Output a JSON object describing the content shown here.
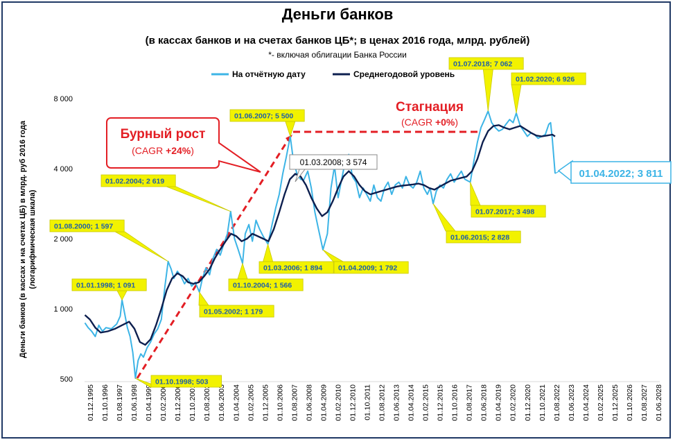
{
  "chart_data": {
    "type": "line",
    "title": "Деньги банков",
    "subtitle": "(в кассах банков и на счетах банков ЦБ*; в ценах 2016 года, млрд. рублей)",
    "note": "*- включая облигации Банка России",
    "ylabel_line1": "Деньги банков (в кассах и на счетах ЦБ) в млрд. руб 2016 года",
    "ylabel_line2": "(логарифмическая шкала)",
    "yscale": "log",
    "ylim": [
      500,
      8000
    ],
    "y_ticks": [
      500,
      1000,
      2000,
      4000,
      8000
    ],
    "y_tick_labels": [
      "500",
      "1 000",
      "2 000",
      "4 000",
      "8 000"
    ],
    "x_tick_labels": [
      "01.12.1995",
      "01.10.1996",
      "01.08.1997",
      "01.06.1998",
      "01.04.1999",
      "01.02.2000",
      "01.12.2000",
      "01.10.2001",
      "01.08.2002",
      "01.06.2003",
      "01.04.2004",
      "01.02.2005",
      "01.12.2005",
      "01.10.2006",
      "01.08.2007",
      "01.06.2008",
      "01.04.2009",
      "01.02.2010",
      "01.12.2010",
      "01.10.2011",
      "01.08.2012",
      "01.06.2013",
      "01.04.2014",
      "01.02.2015",
      "01.12.2015",
      "01.10.2016",
      "01.08.2017",
      "01.06.2018",
      "01.04.2019",
      "01.02.2020",
      "01.12.2020",
      "01.10.2021",
      "01.08.2022",
      "01.06.2023",
      "01.04.2024",
      "01.02.2025",
      "01.12.2025",
      "01.10.2026",
      "01.08.2027",
      "01.06.2028"
    ],
    "x_range": [
      1995.9,
      2028.5
    ],
    "legend": {
      "placement": "top-center",
      "items": [
        {
          "name": "На отчётную дату",
          "color": "#3cb4e6"
        },
        {
          "name": "Среднегодовой уровень",
          "color": "#0d1f4f"
        }
      ]
    },
    "series": [
      {
        "name": "На отчётную дату",
        "color": "#3cb4e6",
        "points": [
          [
            1995.92,
            870
          ],
          [
            1996.1,
            830
          ],
          [
            1996.3,
            800
          ],
          [
            1996.5,
            760
          ],
          [
            1996.7,
            850
          ],
          [
            1996.9,
            800
          ],
          [
            1997.1,
            830
          ],
          [
            1997.4,
            820
          ],
          [
            1997.7,
            860
          ],
          [
            1997.9,
            930
          ],
          [
            1998.0,
            1091
          ],
          [
            1998.15,
            950
          ],
          [
            1998.3,
            830
          ],
          [
            1998.45,
            760
          ],
          [
            1998.6,
            650
          ],
          [
            1998.75,
            503
          ],
          [
            1998.9,
            600
          ],
          [
            1999.05,
            640
          ],
          [
            1999.2,
            620
          ],
          [
            1999.4,
            680
          ],
          [
            1999.6,
            720
          ],
          [
            1999.8,
            780
          ],
          [
            2000.0,
            820
          ],
          [
            2000.2,
            900
          ],
          [
            2000.4,
            1250
          ],
          [
            2000.58,
            1597
          ],
          [
            2000.75,
            1480
          ],
          [
            2000.9,
            1350
          ],
          [
            2001.1,
            1450
          ],
          [
            2001.3,
            1380
          ],
          [
            2001.5,
            1280
          ],
          [
            2001.7,
            1350
          ],
          [
            2001.9,
            1250
          ],
          [
            2002.1,
            1300
          ],
          [
            2002.33,
            1179
          ],
          [
            2002.5,
            1350
          ],
          [
            2002.7,
            1500
          ],
          [
            2002.9,
            1400
          ],
          [
            2003.1,
            1650
          ],
          [
            2003.3,
            1800
          ],
          [
            2003.5,
            1700
          ],
          [
            2003.7,
            1900
          ],
          [
            2003.9,
            2100
          ],
          [
            2004.08,
            2619
          ],
          [
            2004.3,
            2000
          ],
          [
            2004.5,
            1800
          ],
          [
            2004.75,
            1566
          ],
          [
            2004.9,
            2100
          ],
          [
            2005.1,
            2300
          ],
          [
            2005.3,
            1950
          ],
          [
            2005.5,
            2400
          ],
          [
            2005.7,
            2200
          ],
          [
            2005.9,
            2050
          ],
          [
            2006.17,
            1894
          ],
          [
            2006.4,
            2300
          ],
          [
            2006.6,
            2700
          ],
          [
            2006.8,
            3100
          ],
          [
            2007.0,
            3800
          ],
          [
            2007.2,
            4500
          ],
          [
            2007.42,
            5500
          ],
          [
            2007.6,
            4300
          ],
          [
            2007.8,
            3800
          ],
          [
            2008.0,
            3600
          ],
          [
            2008.17,
            3574
          ],
          [
            2008.4,
            3900
          ],
          [
            2008.6,
            3300
          ],
          [
            2008.8,
            2600
          ],
          [
            2009.0,
            2200
          ],
          [
            2009.25,
            1792
          ],
          [
            2009.5,
            2100
          ],
          [
            2009.7,
            3300
          ],
          [
            2009.9,
            4100
          ],
          [
            2010.1,
            3000
          ],
          [
            2010.3,
            3600
          ],
          [
            2010.5,
            4300
          ],
          [
            2010.7,
            4600
          ],
          [
            2010.9,
            3700
          ],
          [
            2011.1,
            3500
          ],
          [
            2011.3,
            3000
          ],
          [
            2011.5,
            3300
          ],
          [
            2011.7,
            3100
          ],
          [
            2011.9,
            2900
          ],
          [
            2012.1,
            3400
          ],
          [
            2012.3,
            3000
          ],
          [
            2012.5,
            2900
          ],
          [
            2012.7,
            3300
          ],
          [
            2012.9,
            3500
          ],
          [
            2013.1,
            3100
          ],
          [
            2013.3,
            3400
          ],
          [
            2013.5,
            3500
          ],
          [
            2013.7,
            3300
          ],
          [
            2013.9,
            3700
          ],
          [
            2014.1,
            3400
          ],
          [
            2014.3,
            3300
          ],
          [
            2014.5,
            3500
          ],
          [
            2014.7,
            3900
          ],
          [
            2014.9,
            3300
          ],
          [
            2015.1,
            3100
          ],
          [
            2015.25,
            3300
          ],
          [
            2015.42,
            2828
          ],
          [
            2015.6,
            3200
          ],
          [
            2015.8,
            3400
          ],
          [
            2016.0,
            3300
          ],
          [
            2016.2,
            3600
          ],
          [
            2016.4,
            3800
          ],
          [
            2016.6,
            3500
          ],
          [
            2016.8,
            3700
          ],
          [
            2017.0,
            3900
          ],
          [
            2017.2,
            3600
          ],
          [
            2017.5,
            3498
          ],
          [
            2017.7,
            4300
          ],
          [
            2017.9,
            5200
          ],
          [
            2018.1,
            6000
          ],
          [
            2018.3,
            6500
          ],
          [
            2018.5,
            7062
          ],
          [
            2018.7,
            6300
          ],
          [
            2018.9,
            6000
          ],
          [
            2019.1,
            5800
          ],
          [
            2019.3,
            5900
          ],
          [
            2019.5,
            6200
          ],
          [
            2019.7,
            6500
          ],
          [
            2019.9,
            6300
          ],
          [
            2020.08,
            6926
          ],
          [
            2020.3,
            6100
          ],
          [
            2020.5,
            5800
          ],
          [
            2020.7,
            5500
          ],
          [
            2020.9,
            5700
          ],
          [
            2021.1,
            5600
          ],
          [
            2021.3,
            5400
          ],
          [
            2021.5,
            5500
          ],
          [
            2021.7,
            5600
          ],
          [
            2021.9,
            6200
          ],
          [
            2022.0,
            6300
          ],
          [
            2022.1,
            5300
          ],
          [
            2022.25,
            3811
          ]
        ]
      },
      {
        "name": "Среднегодовой уровень",
        "color": "#0d1f4f",
        "points": [
          [
            1995.92,
            940
          ],
          [
            1996.2,
            900
          ],
          [
            1996.5,
            830
          ],
          [
            1996.8,
            790
          ],
          [
            1997.2,
            800
          ],
          [
            1997.6,
            820
          ],
          [
            1998.0,
            850
          ],
          [
            1998.4,
            880
          ],
          [
            1998.7,
            820
          ],
          [
            1999.0,
            720
          ],
          [
            1999.3,
            700
          ],
          [
            1999.6,
            740
          ],
          [
            1999.9,
            850
          ],
          [
            2000.2,
            1000
          ],
          [
            2000.5,
            1200
          ],
          [
            2000.8,
            1350
          ],
          [
            2001.1,
            1420
          ],
          [
            2001.4,
            1380
          ],
          [
            2001.7,
            1300
          ],
          [
            2002.0,
            1280
          ],
          [
            2002.3,
            1300
          ],
          [
            2002.6,
            1380
          ],
          [
            2002.9,
            1480
          ],
          [
            2003.2,
            1650
          ],
          [
            2003.5,
            1800
          ],
          [
            2003.8,
            1950
          ],
          [
            2004.1,
            2100
          ],
          [
            2004.4,
            2050
          ],
          [
            2004.7,
            1950
          ],
          [
            2005.0,
            2000
          ],
          [
            2005.3,
            2100
          ],
          [
            2005.6,
            2050
          ],
          [
            2005.9,
            2000
          ],
          [
            2006.2,
            1950
          ],
          [
            2006.5,
            2200
          ],
          [
            2006.8,
            2600
          ],
          [
            2007.1,
            3100
          ],
          [
            2007.4,
            3600
          ],
          [
            2007.7,
            3800
          ],
          [
            2008.0,
            3700
          ],
          [
            2008.3,
            3400
          ],
          [
            2008.6,
            3000
          ],
          [
            2008.9,
            2700
          ],
          [
            2009.2,
            2500
          ],
          [
            2009.5,
            2600
          ],
          [
            2009.8,
            2900
          ],
          [
            2010.1,
            3300
          ],
          [
            2010.4,
            3700
          ],
          [
            2010.7,
            3900
          ],
          [
            2011.0,
            3700
          ],
          [
            2011.3,
            3400
          ],
          [
            2011.6,
            3200
          ],
          [
            2011.9,
            3100
          ],
          [
            2012.2,
            3150
          ],
          [
            2012.5,
            3200
          ],
          [
            2012.8,
            3250
          ],
          [
            2013.1,
            3300
          ],
          [
            2013.4,
            3350
          ],
          [
            2013.7,
            3380
          ],
          [
            2014.0,
            3400
          ],
          [
            2014.3,
            3420
          ],
          [
            2014.6,
            3450
          ],
          [
            2014.9,
            3400
          ],
          [
            2015.2,
            3300
          ],
          [
            2015.5,
            3250
          ],
          [
            2015.8,
            3350
          ],
          [
            2016.1,
            3450
          ],
          [
            2016.4,
            3550
          ],
          [
            2016.7,
            3600
          ],
          [
            2017.0,
            3650
          ],
          [
            2017.3,
            3700
          ],
          [
            2017.6,
            3900
          ],
          [
            2017.9,
            4400
          ],
          [
            2018.2,
            5200
          ],
          [
            2018.5,
            5800
          ],
          [
            2018.8,
            6100
          ],
          [
            2019.1,
            6150
          ],
          [
            2019.4,
            6000
          ],
          [
            2019.7,
            5900
          ],
          [
            2020.0,
            6000
          ],
          [
            2020.3,
            6100
          ],
          [
            2020.6,
            5900
          ],
          [
            2020.9,
            5700
          ],
          [
            2021.2,
            5550
          ],
          [
            2021.5,
            5500
          ],
          [
            2021.8,
            5550
          ],
          [
            2022.1,
            5600
          ],
          [
            2022.25,
            5500
          ]
        ]
      }
    ],
    "annotations": {
      "callouts": [
        {
          "text": "01.01.1998; 1 091",
          "x": 1998.0,
          "y": 1091
        },
        {
          "text": "01.10.1998;  503",
          "x": 1998.75,
          "y": 503
        },
        {
          "text": "01.08.2000; 1 597",
          "x": 2000.58,
          "y": 1597
        },
        {
          "text": "01.05.2002; 1 179",
          "x": 2002.33,
          "y": 1179
        },
        {
          "text": "01.02.2004; 2 619",
          "x": 2004.08,
          "y": 2619
        },
        {
          "text": "01.10.2004; 1 566",
          "x": 2004.75,
          "y": 1566
        },
        {
          "text": "01.03.2006; 1 894",
          "x": 2006.17,
          "y": 1894
        },
        {
          "text": "01.06.2007; 5 500",
          "x": 2007.42,
          "y": 5500
        },
        {
          "text": "01.04.2009; 1 792",
          "x": 2009.25,
          "y": 1792
        },
        {
          "text": "01.06.2015; 2 828",
          "x": 2015.42,
          "y": 2828
        },
        {
          "text": "01.07.2017; 3 498",
          "x": 2017.5,
          "y": 3498
        },
        {
          "text": "01.07.2018; 7 062",
          "x": 2018.5,
          "y": 7062
        },
        {
          "text": "01.02.2020; 6 926",
          "x": 2020.08,
          "y": 6926
        }
      ],
      "tooltip_label": "01.03.2008; 3 574",
      "last_value_label": "01.04.2022; 3 811",
      "growth": {
        "title": "Бурный рост",
        "cagr_prefix": "(CAGR ",
        "cagr_value": "+24%",
        "cagr_suffix": ")"
      },
      "stagnation": {
        "title": "Стагнация",
        "cagr_prefix": "(CAGR ",
        "cagr_value": "+0%",
        "cagr_suffix": ")"
      }
    }
  }
}
